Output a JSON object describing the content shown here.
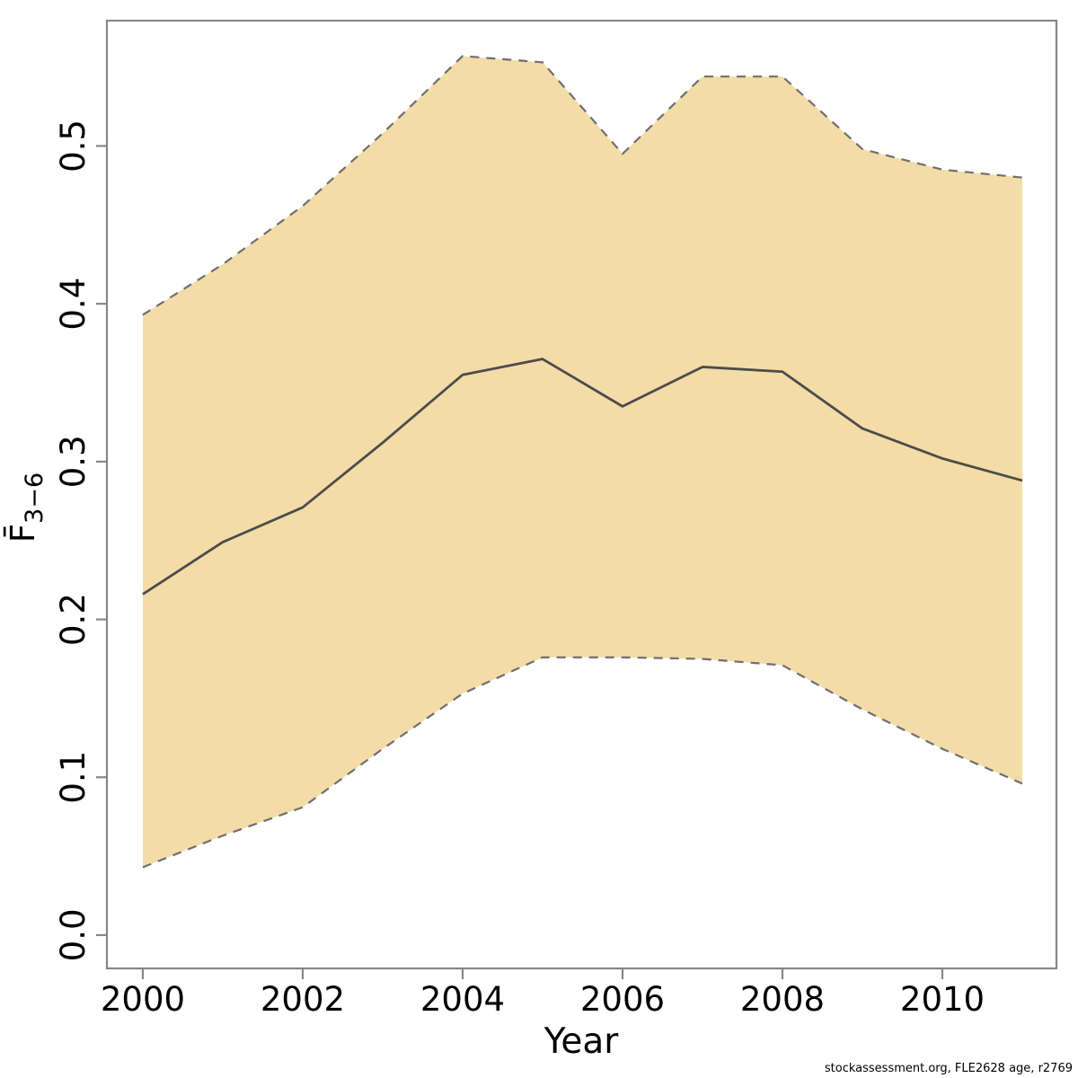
{
  "footer": {
    "credit": "stockassessment.org, FLE2628 age, r2769"
  },
  "chart_data": {
    "type": "area",
    "title": "",
    "xlabel": "Year",
    "ylabel": {
      "base": "F̄",
      "subscript": "3−6"
    },
    "x": [
      2000,
      2001,
      2002,
      2003,
      2004,
      2005,
      2006,
      2007,
      2008,
      2009,
      2010,
      2011
    ],
    "series": [
      {
        "name": "mean_F",
        "values": [
          0.216,
          0.249,
          0.271,
          0.312,
          0.355,
          0.365,
          0.335,
          0.36,
          0.357,
          0.321,
          0.302,
          0.288
        ]
      },
      {
        "name": "upper_ci",
        "values": [
          0.393,
          0.425,
          0.462,
          0.508,
          0.557,
          0.553,
          0.495,
          0.544,
          0.544,
          0.498,
          0.485,
          0.48
        ]
      },
      {
        "name": "lower_ci",
        "values": [
          0.043,
          0.063,
          0.081,
          0.118,
          0.153,
          0.176,
          0.176,
          0.175,
          0.171,
          0.143,
          0.118,
          0.096
        ]
      }
    ],
    "x_ticks": [
      2000,
      2002,
      2004,
      2006,
      2008,
      2010
    ],
    "y_ticks": [
      "0.0",
      "0.1",
      "0.2",
      "0.3",
      "0.4",
      "0.5"
    ],
    "xlim": [
      1999.551,
      2011.427
    ],
    "ylim": [
      -0.0211,
      0.5794
    ],
    "grid": false,
    "legend": false,
    "colors": {
      "band_fill": "#F3DCA7",
      "band_edge": "#6F6F6F",
      "mean_line": "#4C4C4C",
      "axis": "#878787",
      "text": "#000000"
    }
  }
}
